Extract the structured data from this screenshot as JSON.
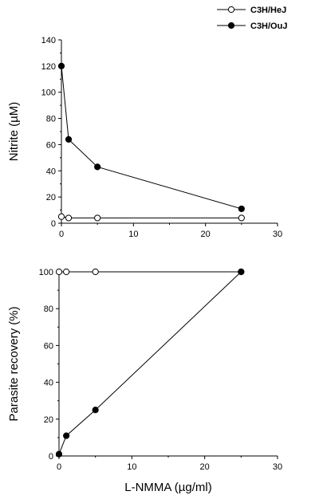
{
  "chart_data": [
    {
      "type": "line",
      "ylabel": "Nitrite (µM)",
      "xlabel": "",
      "xlim": [
        0,
        30
      ],
      "ylim": [
        0,
        140
      ],
      "x_ticks": [
        "0",
        "10",
        "20",
        "30"
      ],
      "y_ticks": [
        "0",
        "20",
        "40",
        "60",
        "80",
        "100",
        "120",
        "140"
      ],
      "grid": false,
      "legend_placement": "top-right",
      "series": [
        {
          "name": "C3H/HeJ",
          "marker": "open-circle",
          "color": "#000000",
          "points": [
            [
              0,
              5
            ],
            [
              1,
              4
            ],
            [
              5,
              4
            ],
            [
              25,
              4
            ]
          ]
        },
        {
          "name": "C3H/OuJ",
          "marker": "filled-circle",
          "color": "#000000",
          "points": [
            [
              0,
              120
            ],
            [
              1,
              64
            ],
            [
              5,
              43
            ],
            [
              25,
              11
            ]
          ]
        }
      ]
    },
    {
      "type": "line",
      "ylabel": "Parasite recovery (%)",
      "xlabel": "L-NMMA (µg/ml)",
      "xlim": [
        0,
        30
      ],
      "ylim": [
        0,
        100
      ],
      "x_ticks": [
        "0",
        "10",
        "20",
        "30"
      ],
      "y_ticks": [
        "0",
        "20",
        "40",
        "60",
        "80",
        "100"
      ],
      "grid": false,
      "series": [
        {
          "name": "C3H/HeJ",
          "marker": "open-circle",
          "color": "#000000",
          "points": [
            [
              0,
              100
            ],
            [
              1,
              100
            ],
            [
              5,
              100
            ],
            [
              25,
              100
            ]
          ]
        },
        {
          "name": "C3H/OuJ",
          "marker": "filled-circle",
          "color": "#000000",
          "points": [
            [
              0,
              1
            ],
            [
              1,
              11
            ],
            [
              5,
              25
            ],
            [
              25,
              100
            ]
          ]
        }
      ]
    }
  ]
}
